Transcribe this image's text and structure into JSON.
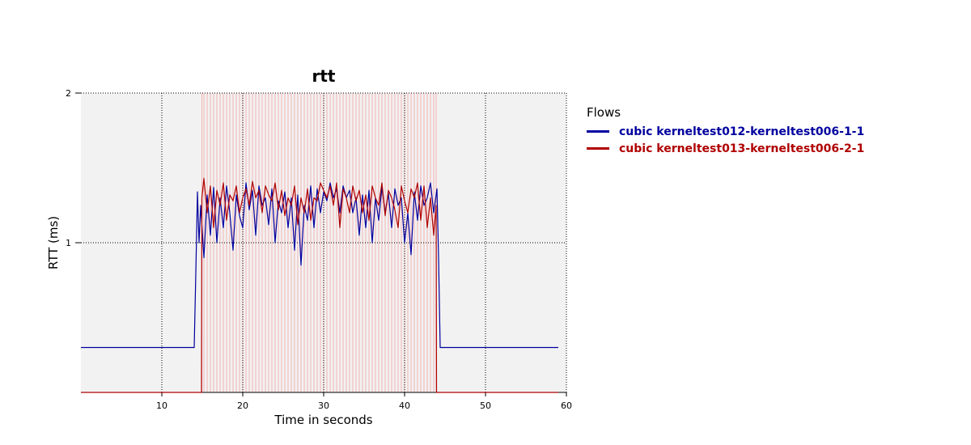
{
  "chart_data": {
    "type": "line",
    "title": "rtt",
    "xlabel": "Time in seconds",
    "ylabel": "RTT (ms)",
    "xlim": [
      0,
      60
    ],
    "ylim": [
      0,
      2
    ],
    "x_ticks": [
      10,
      20,
      30,
      40,
      50,
      60
    ],
    "y_ticks": [
      1,
      2
    ],
    "grid": true,
    "legend": {
      "title": "Flows",
      "placement": "right"
    },
    "series": [
      {
        "name": "cubic kerneltest012-kerneltest006-1-1",
        "color": "#00009f",
        "x": [
          0,
          2,
          4,
          6,
          8,
          10,
          12,
          14,
          14.2,
          14.4,
          14.6,
          14.8,
          15.2,
          15.6,
          16,
          16.4,
          16.8,
          17.2,
          17.6,
          18,
          18.4,
          18.8,
          19.2,
          19.6,
          20,
          20.4,
          20.8,
          21.2,
          21.6,
          22,
          22.4,
          22.8,
          23.2,
          23.6,
          24,
          24.4,
          24.8,
          25.2,
          25.6,
          26,
          26.4,
          26.8,
          27.2,
          27.6,
          28,
          28.4,
          28.8,
          29.2,
          29.6,
          30,
          30.4,
          30.8,
          31.2,
          31.6,
          32,
          32.4,
          32.8,
          33.2,
          33.6,
          34,
          34.4,
          34.8,
          35.2,
          35.6,
          36,
          36.4,
          36.8,
          37.2,
          37.6,
          38,
          38.4,
          38.8,
          39.2,
          39.6,
          40,
          40.4,
          40.8,
          41.2,
          41.6,
          42,
          42.4,
          42.8,
          43.2,
          43.6,
          44,
          44.2,
          44.4,
          46,
          48,
          50,
          52,
          54,
          56,
          58,
          59
        ],
        "values": [
          0.3,
          0.3,
          0.3,
          0.3,
          0.3,
          0.3,
          0.3,
          0.3,
          0.8,
          1.34,
          1.0,
          1.25,
          0.9,
          1.32,
          1.05,
          1.37,
          1.0,
          1.3,
          1.1,
          1.38,
          1.2,
          0.95,
          1.32,
          1.18,
          1.1,
          1.4,
          1.22,
          1.35,
          1.05,
          1.38,
          1.25,
          1.3,
          1.12,
          1.36,
          1.0,
          1.28,
          1.2,
          1.34,
          1.1,
          1.3,
          0.95,
          1.32,
          0.85,
          1.25,
          1.15,
          1.38,
          1.1,
          1.36,
          1.2,
          1.34,
          1.28,
          1.4,
          1.3,
          1.36,
          1.2,
          1.38,
          1.3,
          1.35,
          1.2,
          1.3,
          1.05,
          1.32,
          1.1,
          1.35,
          1.0,
          1.3,
          1.15,
          1.37,
          1.2,
          1.33,
          1.1,
          1.36,
          1.25,
          1.3,
          1.0,
          1.2,
          0.92,
          1.34,
          1.15,
          1.38,
          1.25,
          1.3,
          1.4,
          1.2,
          1.36,
          0.9,
          0.3,
          0.3,
          0.3,
          0.3,
          0.3,
          0.3,
          0.3,
          0.3,
          0.3
        ]
      },
      {
        "name": "cubic kerneltest013-kerneltest006-2-1",
        "color": "#b00000",
        "x": [
          0,
          14.9,
          14.95,
          15.2,
          15.6,
          16,
          16.4,
          16.8,
          17.2,
          17.6,
          18,
          18.4,
          18.8,
          19.2,
          19.6,
          20,
          20.4,
          20.8,
          21.2,
          21.6,
          22,
          22.4,
          22.8,
          23.2,
          23.6,
          24,
          24.4,
          24.8,
          25.2,
          25.6,
          26,
          26.4,
          26.8,
          27.2,
          27.6,
          28,
          28.4,
          28.8,
          29.2,
          29.6,
          30,
          30.4,
          30.8,
          31.2,
          31.6,
          32,
          32.4,
          32.8,
          33.2,
          33.6,
          34,
          34.4,
          34.8,
          35.2,
          35.6,
          36,
          36.4,
          36.8,
          37.2,
          37.6,
          38,
          38.4,
          38.8,
          39.2,
          39.6,
          40,
          40.4,
          40.8,
          41.2,
          41.6,
          42,
          42.4,
          42.8,
          43.2,
          43.6,
          43.9,
          43.95,
          59
        ],
        "values": [
          0,
          0,
          1.3,
          1.43,
          1.2,
          1.38,
          1.1,
          1.35,
          1.25,
          1.4,
          1.15,
          1.32,
          1.28,
          1.38,
          1.2,
          1.3,
          1.36,
          1.25,
          1.41,
          1.3,
          1.35,
          1.2,
          1.38,
          1.32,
          1.28,
          1.4,
          1.22,
          1.35,
          1.18,
          1.3,
          1.25,
          1.38,
          1.12,
          1.3,
          1.2,
          1.36,
          1.15,
          1.3,
          1.28,
          1.4,
          1.35,
          1.3,
          1.38,
          1.25,
          1.4,
          1.1,
          1.36,
          1.3,
          1.2,
          1.38,
          1.28,
          1.35,
          1.2,
          1.32,
          1.15,
          1.38,
          1.3,
          1.25,
          1.4,
          1.18,
          1.35,
          1.3,
          1.22,
          1.1,
          1.38,
          1.28,
          1.2,
          1.36,
          1.3,
          1.4,
          1.15,
          1.38,
          1.1,
          1.3,
          1.05,
          1.25,
          0,
          0
        ]
      }
    ]
  }
}
